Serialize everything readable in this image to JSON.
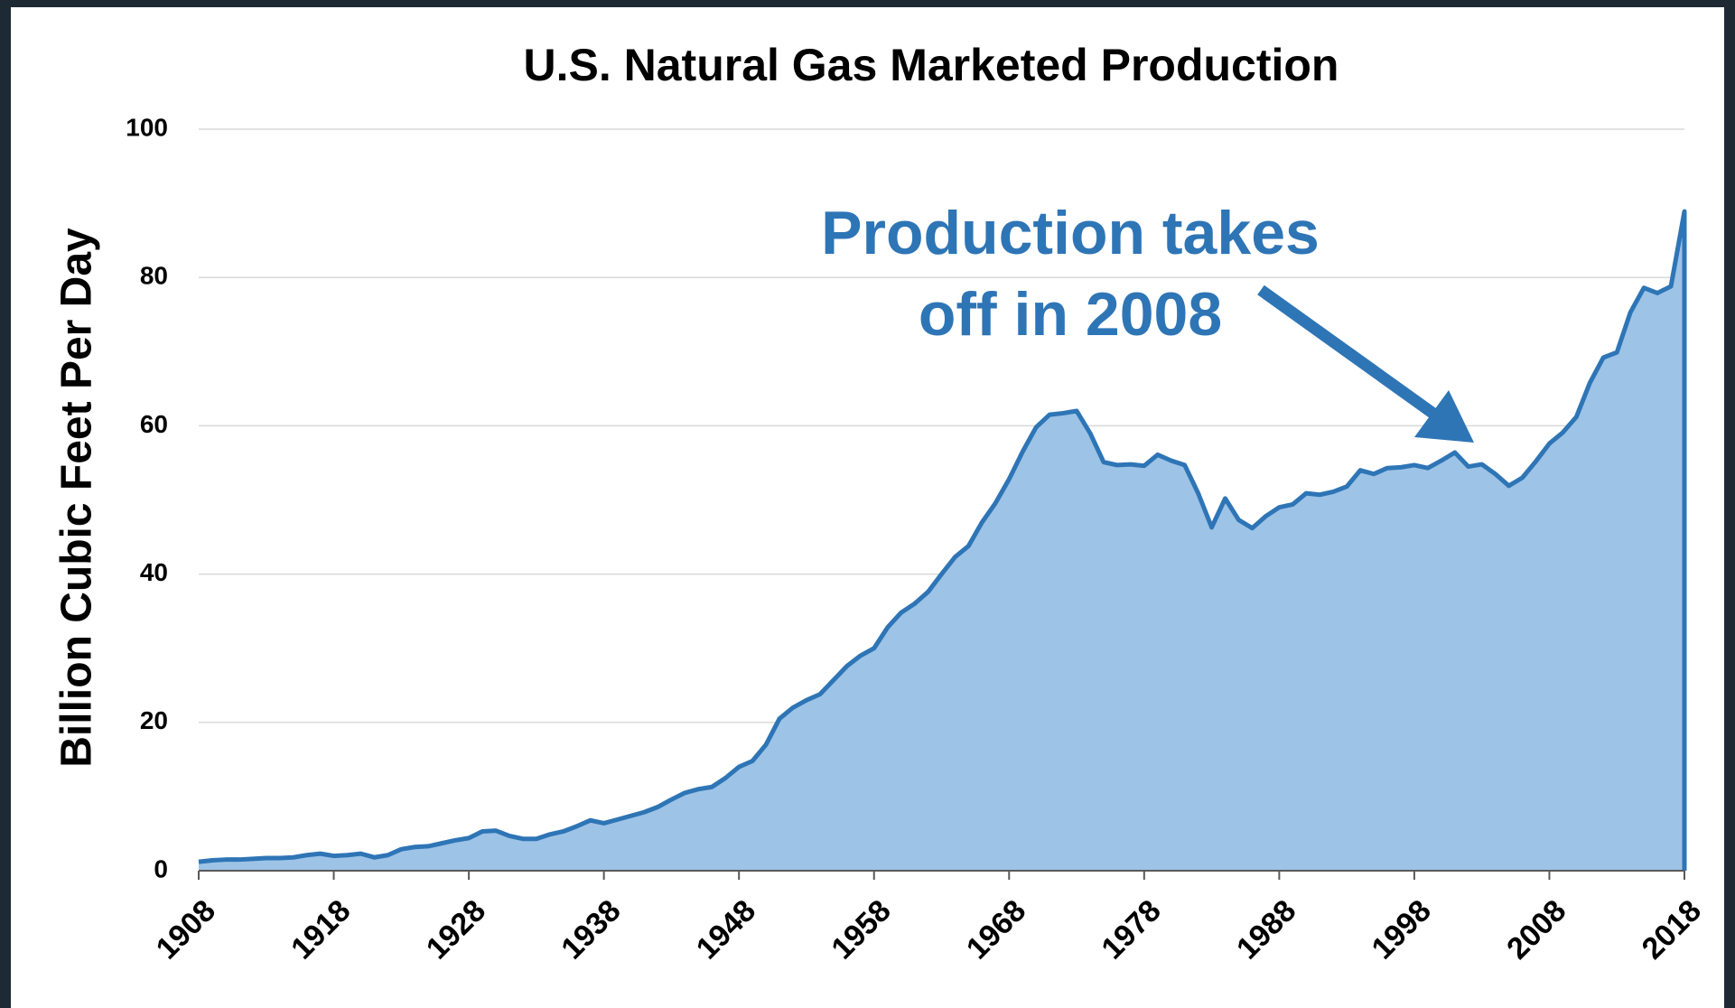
{
  "chart_data": {
    "type": "area",
    "title": "U.S. Natural Gas Marketed Production",
    "y_label": "Billion Cubic Feet Per Day",
    "annotation": [
      "Production takes",
      "off in 2008"
    ],
    "color": "#2e75b6",
    "fill": "#9dc3e6",
    "annotation_color": "#2e75b6",
    "xlim": [
      1908,
      2018
    ],
    "xticks": [
      1908,
      1918,
      1928,
      1938,
      1948,
      1958,
      1968,
      1978,
      1988,
      1998,
      2008,
      2018
    ],
    "ylim": [
      0,
      100
    ],
    "yticks": [
      0,
      20,
      40,
      60,
      80,
      100
    ],
    "grid": true,
    "x": [
      1908,
      1909,
      1910,
      1911,
      1912,
      1913,
      1914,
      1915,
      1916,
      1917,
      1918,
      1919,
      1920,
      1921,
      1922,
      1923,
      1924,
      1925,
      1926,
      1927,
      1928,
      1929,
      1930,
      1931,
      1932,
      1933,
      1934,
      1935,
      1936,
      1937,
      1938,
      1939,
      1940,
      1941,
      1942,
      1943,
      1944,
      1945,
      1946,
      1947,
      1948,
      1949,
      1950,
      1951,
      1952,
      1953,
      1954,
      1955,
      1956,
      1957,
      1958,
      1959,
      1960,
      1961,
      1962,
      1963,
      1964,
      1965,
      1966,
      1967,
      1968,
      1969,
      1970,
      1971,
      1972,
      1973,
      1974,
      1975,
      1976,
      1977,
      1978,
      1979,
      1980,
      1981,
      1982,
      1983,
      1984,
      1985,
      1986,
      1987,
      1988,
      1989,
      1990,
      1991,
      1992,
      1993,
      1994,
      1995,
      1996,
      1997,
      1998,
      1999,
      2000,
      2001,
      2002,
      2003,
      2004,
      2005,
      2006,
      2007,
      2008,
      2009,
      2010,
      2011,
      2012,
      2013,
      2014,
      2015,
      2016,
      2017,
      2018
    ],
    "values": [
      1.2,
      1.4,
      1.5,
      1.5,
      1.6,
      1.7,
      1.7,
      1.8,
      2.1,
      2.3,
      2.0,
      2.1,
      2.3,
      1.8,
      2.1,
      2.9,
      3.2,
      3.3,
      3.7,
      4.1,
      4.4,
      5.3,
      5.4,
      4.7,
      4.3,
      4.3,
      4.9,
      5.3,
      6.0,
      6.8,
      6.4,
      6.9,
      7.4,
      7.9,
      8.6,
      9.6,
      10.5,
      11.0,
      11.3,
      12.5,
      14.0,
      14.8,
      17.0,
      20.5,
      22.0,
      23.0,
      23.8,
      25.7,
      27.6,
      29.0,
      30.0,
      32.8,
      34.8,
      36.0,
      37.6,
      40.0,
      42.3,
      43.8,
      47.0,
      49.6,
      52.8,
      56.5,
      59.8,
      61.5,
      61.7,
      62.0,
      59.0,
      55.1,
      54.7,
      54.8,
      54.6,
      56.1,
      55.3,
      54.7,
      50.9,
      46.3,
      50.2,
      47.3,
      46.2,
      47.8,
      49.0,
      49.4,
      50.9,
      50.7,
      51.1,
      51.8,
      54.0,
      53.5,
      54.3,
      54.4,
      54.7,
      54.3,
      55.3,
      56.4,
      54.5,
      54.8,
      53.5,
      51.9,
      53.0,
      55.2,
      57.6,
      59.1,
      61.2,
      65.8,
      69.2,
      69.9,
      75.3,
      78.6,
      77.9,
      78.8,
      88.9
    ]
  }
}
